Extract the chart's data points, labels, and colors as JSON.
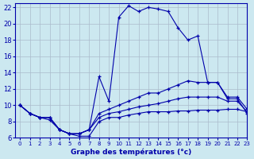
{
  "xlabel": "Graphe des températures (°c)",
  "background_color": "#cce8f0",
  "grid_color": "#aabbcc",
  "line_color": "#0000aa",
  "xlim": [
    -0.5,
    23
  ],
  "ylim": [
    6,
    22.5
  ],
  "xticks": [
    0,
    1,
    2,
    3,
    4,
    5,
    6,
    7,
    8,
    9,
    10,
    11,
    12,
    13,
    14,
    15,
    16,
    17,
    18,
    19,
    20,
    21,
    22,
    23
  ],
  "yticks": [
    6,
    8,
    10,
    12,
    14,
    16,
    18,
    20,
    22
  ],
  "line_main_x": [
    0,
    1,
    2,
    3,
    4,
    5,
    6,
    7,
    8,
    9,
    10,
    11,
    12,
    13,
    14,
    15,
    16,
    17,
    18,
    19,
    20,
    21,
    22,
    23
  ],
  "line_main_y": [
    10,
    9,
    8.5,
    8.5,
    7.0,
    6.5,
    6.5,
    7.0,
    13.5,
    10.5,
    20.8,
    22.2,
    21.5,
    22.0,
    21.8,
    21.5,
    19.5,
    18.0,
    18.5,
    12.8,
    12.8,
    10.8,
    10.8,
    9.0
  ],
  "line_upper_x": [
    0,
    1,
    2,
    3,
    4,
    5,
    6,
    7,
    8,
    9,
    10,
    11,
    12,
    13,
    14,
    15,
    16,
    17,
    18,
    19,
    20,
    21,
    22,
    23
  ],
  "line_upper_y": [
    10,
    9,
    8.5,
    8.5,
    7.0,
    6.5,
    6.5,
    7.0,
    9.0,
    9.5,
    10.0,
    10.5,
    11.0,
    11.5,
    11.5,
    12.0,
    12.5,
    13.0,
    12.8,
    12.8,
    12.8,
    11.0,
    11.0,
    9.5
  ],
  "line_mid_x": [
    0,
    1,
    2,
    3,
    4,
    5,
    6,
    7,
    8,
    9,
    10,
    11,
    12,
    13,
    14,
    15,
    16,
    17,
    18,
    19,
    20,
    21,
    22,
    23
  ],
  "line_mid_y": [
    10,
    9,
    8.5,
    8.5,
    7.0,
    6.5,
    6.5,
    7.0,
    8.5,
    9.0,
    9.2,
    9.5,
    9.8,
    10.0,
    10.2,
    10.5,
    10.8,
    11.0,
    11.0,
    11.0,
    11.0,
    10.5,
    10.5,
    9.2
  ],
  "line_low_x": [
    0,
    1,
    2,
    3,
    4,
    5,
    6,
    7,
    8,
    9,
    10,
    11,
    12,
    13,
    14,
    15,
    16,
    17,
    18,
    19,
    20,
    21,
    22,
    23
  ],
  "line_low_y": [
    10,
    9,
    8.5,
    8.2,
    7.0,
    6.5,
    6.2,
    6.2,
    8.0,
    8.5,
    8.5,
    8.8,
    9.0,
    9.2,
    9.2,
    9.2,
    9.3,
    9.3,
    9.4,
    9.4,
    9.4,
    9.5,
    9.5,
    9.2
  ]
}
